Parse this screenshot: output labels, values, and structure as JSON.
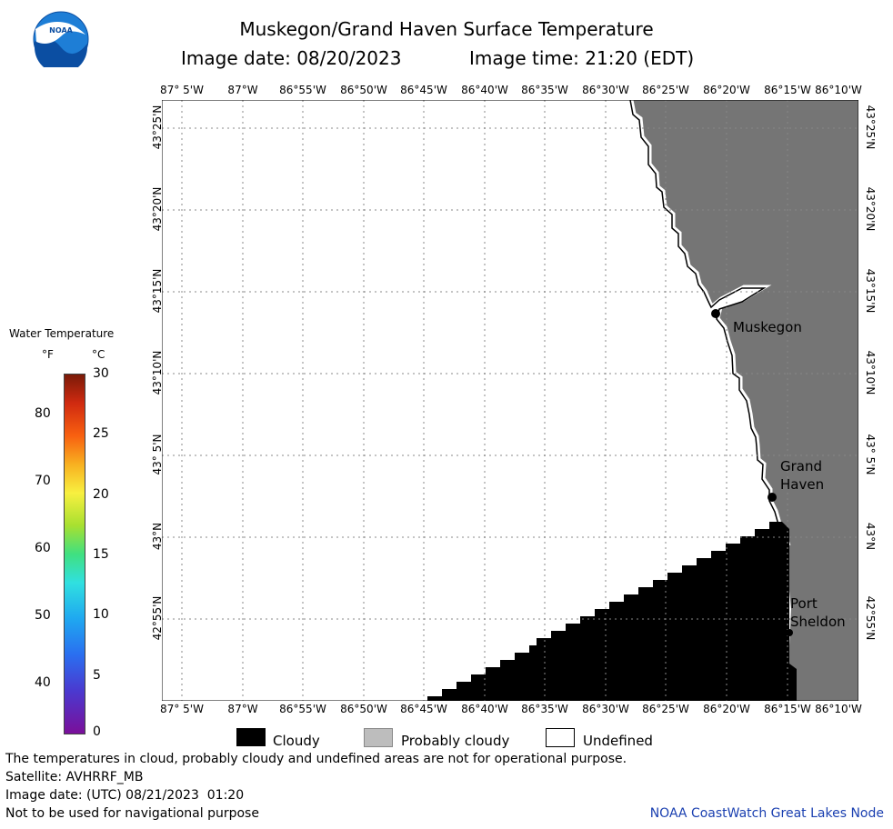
{
  "header": {
    "title": "Muskegon/Grand Haven Surface Temperature",
    "image_date": "Image date: 08/20/2023",
    "image_time": "Image time: 21:20 (EDT)"
  },
  "logo": {
    "text": "NOAA"
  },
  "axes": {
    "lon_labels": [
      "87° 5'W",
      "87°W",
      "86°55'W",
      "86°50'W",
      "86°45'W",
      "86°40'W",
      "86°35'W",
      "86°30'W",
      "86°25'W",
      "86°20'W",
      "86°15'W",
      "86°10'W"
    ],
    "lat_labels": [
      "43°25'N",
      "43°20'N",
      "43°15'N",
      "43°10'N",
      "43° 5'N",
      "43°N",
      "42°55'N"
    ]
  },
  "places": [
    {
      "name": "Muskegon",
      "lines": [
        "Muskegon"
      ]
    },
    {
      "name": "Grand Haven",
      "lines": [
        "Grand",
        "Haven"
      ]
    },
    {
      "name": "Port Sheldon",
      "lines": [
        "Port",
        "Sheldon"
      ]
    }
  ],
  "colorbar": {
    "title": "Water Temperature",
    "unit_f": "°F",
    "unit_c": "°C",
    "f_ticks": [
      "80",
      "70",
      "60",
      "50",
      "40"
    ],
    "c_ticks": [
      "30",
      "25",
      "20",
      "15",
      "10",
      "5",
      "0"
    ]
  },
  "key": {
    "cloudy": "Cloudy",
    "probably_cloudy": "Probably cloudy",
    "undefined": "Undefined"
  },
  "footer": {
    "disclaimer": "The temperatures in cloud, probably cloudy and undefined areas are not for operational purpose.",
    "satellite": "Satellite: AVHRRF_MB",
    "utc_date": "Image date: (UTC) 08/21/2023  01:20",
    "nav_warning": "Not to be used for navigational purpose",
    "credit": "NOAA CoastWatch Great Lakes Node"
  },
  "colors": {
    "land": "#757575",
    "cloud": "#000000",
    "grid": "#888888",
    "credit": "#1a3fb0"
  }
}
